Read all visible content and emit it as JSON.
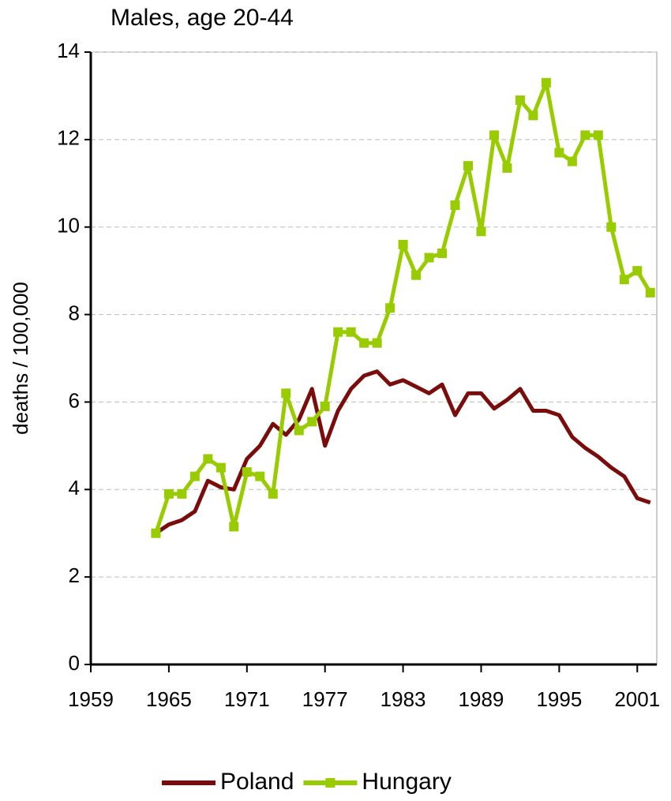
{
  "chart_data": {
    "type": "line",
    "title": "Males, age 20-44",
    "y_label": "deaths / 100,000",
    "x": [
      1964,
      1965,
      1966,
      1967,
      1968,
      1969,
      1970,
      1971,
      1972,
      1973,
      1974,
      1975,
      1976,
      1977,
      1978,
      1979,
      1980,
      1981,
      1982,
      1983,
      1984,
      1985,
      1986,
      1987,
      1988,
      1989,
      1990,
      1991,
      1992,
      1993,
      1994,
      1995,
      1996,
      1997,
      1998,
      1999,
      2000,
      2001,
      2002
    ],
    "series": [
      {
        "name": "Poland",
        "color": "#7b0c0c",
        "marker": false,
        "values": [
          3.0,
          3.2,
          3.3,
          3.5,
          4.2,
          4.05,
          4.0,
          4.7,
          5.0,
          5.5,
          5.25,
          5.6,
          6.3,
          5.0,
          5.8,
          6.3,
          6.6,
          6.7,
          6.4,
          6.5,
          6.35,
          6.2,
          6.4,
          5.7,
          6.2,
          6.2,
          5.85,
          6.05,
          6.3,
          5.8,
          5.8,
          5.7,
          5.2,
          4.95,
          4.75,
          4.5,
          4.3,
          3.8,
          3.7
        ]
      },
      {
        "name": "Hungary",
        "color": "#99cc00",
        "marker": true,
        "values": [
          3.0,
          3.9,
          3.9,
          4.3,
          4.7,
          4.5,
          3.15,
          4.4,
          4.3,
          3.9,
          6.2,
          5.35,
          5.55,
          5.9,
          7.6,
          7.6,
          7.35,
          7.35,
          8.15,
          9.6,
          8.9,
          9.3,
          9.4,
          10.5,
          11.4,
          9.9,
          12.1,
          11.35,
          12.9,
          12.55,
          13.3,
          11.7,
          11.5,
          12.1,
          12.1,
          10.0,
          8.8,
          9.0,
          8.5
        ]
      }
    ],
    "xlim": [
      1959,
      2002.5
    ],
    "xticks": [
      1959,
      1965,
      1971,
      1977,
      1983,
      1989,
      1995,
      2001
    ],
    "ylim": [
      0,
      14
    ],
    "yticks": [
      0,
      2,
      4,
      6,
      8,
      10,
      12,
      14
    ],
    "grid": true,
    "legend": "bottom"
  }
}
